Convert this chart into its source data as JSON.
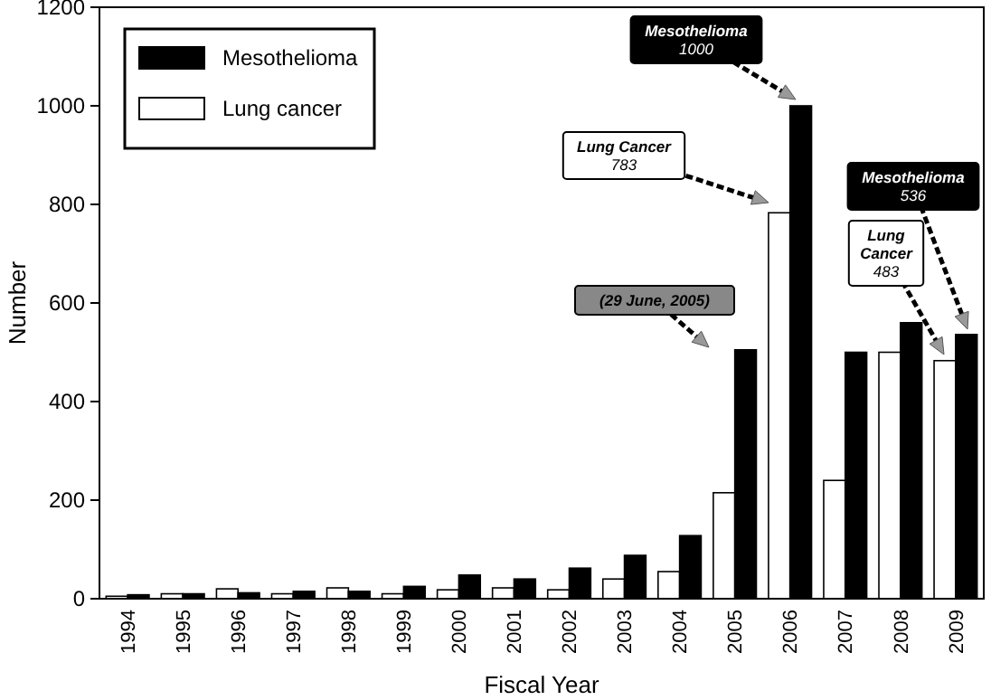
{
  "chart_data": {
    "type": "bar",
    "xlabel": "Fiscal Year",
    "ylabel": "Number",
    "categories": [
      "1994",
      "1995",
      "1996",
      "1997",
      "1998",
      "1999",
      "2000",
      "2001",
      "2002",
      "2003",
      "2004",
      "2005",
      "2006",
      "2007",
      "2008",
      "2009"
    ],
    "series": [
      {
        "name": "Lung cancer",
        "color": "#ffffff",
        "values": [
          5,
          10,
          20,
          10,
          22,
          10,
          18,
          22,
          18,
          40,
          55,
          215,
          783,
          240,
          500,
          483
        ]
      },
      {
        "name": "Mesothelioma",
        "color": "#000000",
        "values": [
          8,
          10,
          12,
          15,
          15,
          25,
          48,
          40,
          62,
          88,
          128,
          505,
          1000,
          500,
          560,
          536
        ]
      }
    ],
    "ylim": [
      0,
      1200
    ],
    "yticks": [
      0,
      200,
      400,
      600,
      800,
      1000,
      1200
    ],
    "grid": false,
    "legend": "top left",
    "annotations": [
      "Mesothelioma\n1000",
      "Lung Cancer\n783",
      "(29 June, 2005)",
      "Mesothelioma\n536",
      "Lung\nCancer\n483"
    ]
  }
}
